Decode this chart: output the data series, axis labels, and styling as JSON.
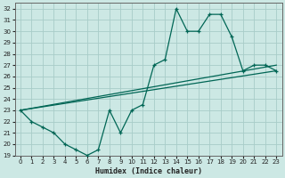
{
  "xlabel": "Humidex (Indice chaleur)",
  "bg_color": "#cce8e4",
  "grid_color": "#a8ccc8",
  "line_color": "#006655",
  "ylim": [
    19,
    32.5
  ],
  "xlim": [
    -0.5,
    23.5
  ],
  "yticks": [
    19,
    20,
    21,
    22,
    23,
    24,
    25,
    26,
    27,
    28,
    29,
    30,
    31,
    32
  ],
  "xticks": [
    0,
    1,
    2,
    3,
    4,
    5,
    6,
    7,
    8,
    9,
    10,
    11,
    12,
    13,
    14,
    15,
    16,
    17,
    18,
    19,
    20,
    21,
    22,
    23
  ],
  "line1_x": [
    0,
    1,
    2,
    3,
    4,
    5,
    6,
    7,
    8,
    9,
    10,
    11,
    12,
    13,
    14,
    15,
    16,
    17,
    18,
    19,
    20,
    21,
    22,
    23
  ],
  "line1_y": [
    23,
    22,
    21.5,
    21,
    20,
    19.5,
    19,
    19.5,
    23,
    21,
    23,
    23.5,
    27,
    27.5,
    32,
    30,
    30,
    31.5,
    31.5,
    29.5,
    26.5,
    27,
    27,
    26.5
  ],
  "line2_x": [
    0,
    23
  ],
  "line2_y": [
    23,
    27
  ],
  "line3_x": [
    0,
    23
  ],
  "line3_y": [
    23,
    26.5
  ],
  "xlabel_fontsize": 6,
  "tick_fontsize": 5
}
